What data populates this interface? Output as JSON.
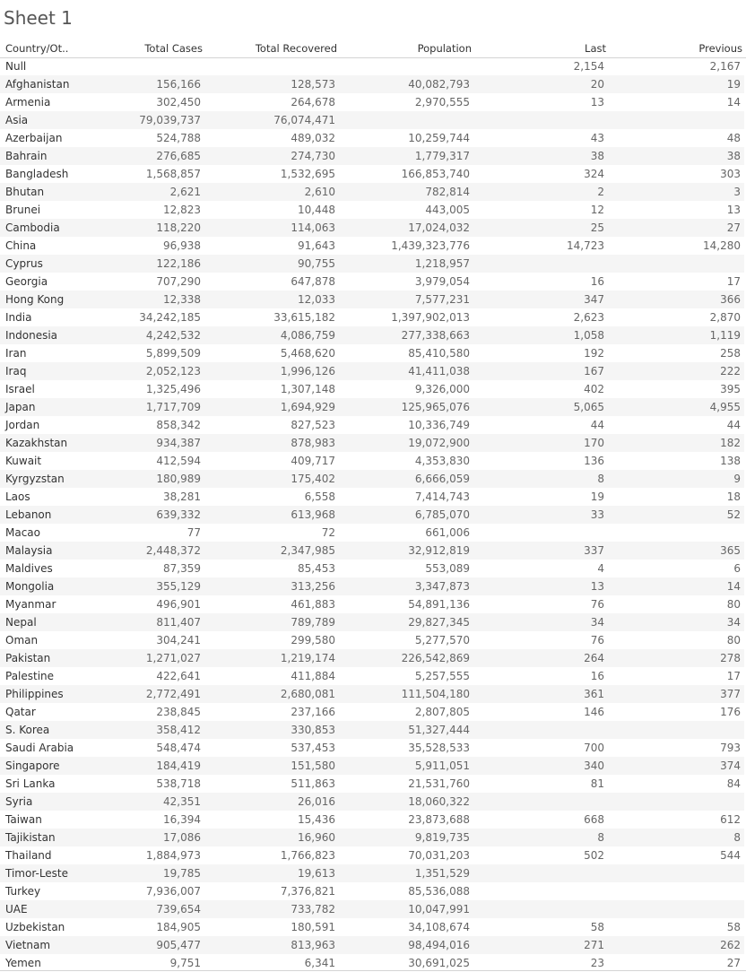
{
  "sheet": {
    "title": "Sheet 1"
  },
  "columns": {
    "country": "Country/Ot..",
    "total_cases": "Total Cases",
    "total_recovered": "Total Recovered",
    "population": "Population",
    "last": "Last",
    "previous": "Previous"
  },
  "rows": [
    {
      "country": "Null",
      "cases": "",
      "recovered": "",
      "population": "",
      "last": "2,154",
      "previous": "2,167"
    },
    {
      "country": "Afghanistan",
      "cases": "156,166",
      "recovered": "128,573",
      "population": "40,082,793",
      "last": "20",
      "previous": "19"
    },
    {
      "country": "Armenia",
      "cases": "302,450",
      "recovered": "264,678",
      "population": "2,970,555",
      "last": "13",
      "previous": "14"
    },
    {
      "country": "Asia",
      "cases": "79,039,737",
      "recovered": "76,074,471",
      "population": "",
      "last": "",
      "previous": ""
    },
    {
      "country": "Azerbaijan",
      "cases": "524,788",
      "recovered": "489,032",
      "population": "10,259,744",
      "last": "43",
      "previous": "48"
    },
    {
      "country": "Bahrain",
      "cases": "276,685",
      "recovered": "274,730",
      "population": "1,779,317",
      "last": "38",
      "previous": "38"
    },
    {
      "country": "Bangladesh",
      "cases": "1,568,857",
      "recovered": "1,532,695",
      "population": "166,853,740",
      "last": "324",
      "previous": "303"
    },
    {
      "country": "Bhutan",
      "cases": "2,621",
      "recovered": "2,610",
      "population": "782,814",
      "last": "2",
      "previous": "3"
    },
    {
      "country": "Brunei",
      "cases": "12,823",
      "recovered": "10,448",
      "population": "443,005",
      "last": "12",
      "previous": "13"
    },
    {
      "country": "Cambodia",
      "cases": "118,220",
      "recovered": "114,063",
      "population": "17,024,032",
      "last": "25",
      "previous": "27"
    },
    {
      "country": "China",
      "cases": "96,938",
      "recovered": "91,643",
      "population": "1,439,323,776",
      "last": "14,723",
      "previous": "14,280"
    },
    {
      "country": "Cyprus",
      "cases": "122,186",
      "recovered": "90,755",
      "population": "1,218,957",
      "last": "",
      "previous": ""
    },
    {
      "country": "Georgia",
      "cases": "707,290",
      "recovered": "647,878",
      "population": "3,979,054",
      "last": "16",
      "previous": "17"
    },
    {
      "country": "Hong Kong",
      "cases": "12,338",
      "recovered": "12,033",
      "population": "7,577,231",
      "last": "347",
      "previous": "366"
    },
    {
      "country": "India",
      "cases": "34,242,185",
      "recovered": "33,615,182",
      "population": "1,397,902,013",
      "last": "2,623",
      "previous": "2,870"
    },
    {
      "country": "Indonesia",
      "cases": "4,242,532",
      "recovered": "4,086,759",
      "population": "277,338,663",
      "last": "1,058",
      "previous": "1,119"
    },
    {
      "country": "Iran",
      "cases": "5,899,509",
      "recovered": "5,468,620",
      "population": "85,410,580",
      "last": "192",
      "previous": "258"
    },
    {
      "country": "Iraq",
      "cases": "2,052,123",
      "recovered": "1,996,126",
      "population": "41,411,038",
      "last": "167",
      "previous": "222"
    },
    {
      "country": "Israel",
      "cases": "1,325,496",
      "recovered": "1,307,148",
      "population": "9,326,000",
      "last": "402",
      "previous": "395"
    },
    {
      "country": "Japan",
      "cases": "1,717,709",
      "recovered": "1,694,929",
      "population": "125,965,076",
      "last": "5,065",
      "previous": "4,955"
    },
    {
      "country": "Jordan",
      "cases": "858,342",
      "recovered": "827,523",
      "population": "10,336,749",
      "last": "44",
      "previous": "44"
    },
    {
      "country": "Kazakhstan",
      "cases": "934,387",
      "recovered": "878,983",
      "population": "19,072,900",
      "last": "170",
      "previous": "182"
    },
    {
      "country": "Kuwait",
      "cases": "412,594",
      "recovered": "409,717",
      "population": "4,353,830",
      "last": "136",
      "previous": "138"
    },
    {
      "country": "Kyrgyzstan",
      "cases": "180,989",
      "recovered": "175,402",
      "population": "6,666,059",
      "last": "8",
      "previous": "9"
    },
    {
      "country": "Laos",
      "cases": "38,281",
      "recovered": "6,558",
      "population": "7,414,743",
      "last": "19",
      "previous": "18"
    },
    {
      "country": "Lebanon",
      "cases": "639,332",
      "recovered": "613,968",
      "population": "6,785,070",
      "last": "33",
      "previous": "52"
    },
    {
      "country": "Macao",
      "cases": "77",
      "recovered": "72",
      "population": "661,006",
      "last": "",
      "previous": ""
    },
    {
      "country": "Malaysia",
      "cases": "2,448,372",
      "recovered": "2,347,985",
      "population": "32,912,819",
      "last": "337",
      "previous": "365"
    },
    {
      "country": "Maldives",
      "cases": "87,359",
      "recovered": "85,453",
      "population": "553,089",
      "last": "4",
      "previous": "6"
    },
    {
      "country": "Mongolia",
      "cases": "355,129",
      "recovered": "313,256",
      "population": "3,347,873",
      "last": "13",
      "previous": "14"
    },
    {
      "country": "Myanmar",
      "cases": "496,901",
      "recovered": "461,883",
      "population": "54,891,136",
      "last": "76",
      "previous": "80"
    },
    {
      "country": "Nepal",
      "cases": "811,407",
      "recovered": "789,789",
      "population": "29,827,345",
      "last": "34",
      "previous": "34"
    },
    {
      "country": "Oman",
      "cases": "304,241",
      "recovered": "299,580",
      "population": "5,277,570",
      "last": "76",
      "previous": "80"
    },
    {
      "country": "Pakistan",
      "cases": "1,271,027",
      "recovered": "1,219,174",
      "population": "226,542,869",
      "last": "264",
      "previous": "278"
    },
    {
      "country": "Palestine",
      "cases": "422,641",
      "recovered": "411,884",
      "population": "5,257,555",
      "last": "16",
      "previous": "17"
    },
    {
      "country": "Philippines",
      "cases": "2,772,491",
      "recovered": "2,680,081",
      "population": "111,504,180",
      "last": "361",
      "previous": "377"
    },
    {
      "country": "Qatar",
      "cases": "238,845",
      "recovered": "237,166",
      "population": "2,807,805",
      "last": "146",
      "previous": "176"
    },
    {
      "country": "S. Korea",
      "cases": "358,412",
      "recovered": "330,853",
      "population": "51,327,444",
      "last": "",
      "previous": ""
    },
    {
      "country": "Saudi Arabia",
      "cases": "548,474",
      "recovered": "537,453",
      "population": "35,528,533",
      "last": "700",
      "previous": "793"
    },
    {
      "country": "Singapore",
      "cases": "184,419",
      "recovered": "151,580",
      "population": "5,911,051",
      "last": "340",
      "previous": "374"
    },
    {
      "country": "Sri Lanka",
      "cases": "538,718",
      "recovered": "511,863",
      "population": "21,531,760",
      "last": "81",
      "previous": "84"
    },
    {
      "country": "Syria",
      "cases": "42,351",
      "recovered": "26,016",
      "population": "18,060,322",
      "last": "",
      "previous": ""
    },
    {
      "country": "Taiwan",
      "cases": "16,394",
      "recovered": "15,436",
      "population": "23,873,688",
      "last": "668",
      "previous": "612"
    },
    {
      "country": "Tajikistan",
      "cases": "17,086",
      "recovered": "16,960",
      "population": "9,819,735",
      "last": "8",
      "previous": "8"
    },
    {
      "country": "Thailand",
      "cases": "1,884,973",
      "recovered": "1,766,823",
      "population": "70,031,203",
      "last": "502",
      "previous": "544"
    },
    {
      "country": "Timor-Leste",
      "cases": "19,785",
      "recovered": "19,613",
      "population": "1,351,529",
      "last": "",
      "previous": ""
    },
    {
      "country": "Turkey",
      "cases": "7,936,007",
      "recovered": "7,376,821",
      "population": "85,536,088",
      "last": "",
      "previous": ""
    },
    {
      "country": "UAE",
      "cases": "739,654",
      "recovered": "733,782",
      "population": "10,047,991",
      "last": "",
      "previous": ""
    },
    {
      "country": "Uzbekistan",
      "cases": "184,905",
      "recovered": "180,591",
      "population": "34,108,674",
      "last": "58",
      "previous": "58"
    },
    {
      "country": "Vietnam",
      "cases": "905,477",
      "recovered": "813,963",
      "population": "98,494,016",
      "last": "271",
      "previous": "262"
    },
    {
      "country": "Yemen",
      "cases": "9,751",
      "recovered": "6,341",
      "population": "30,691,025",
      "last": "23",
      "previous": "27"
    }
  ]
}
